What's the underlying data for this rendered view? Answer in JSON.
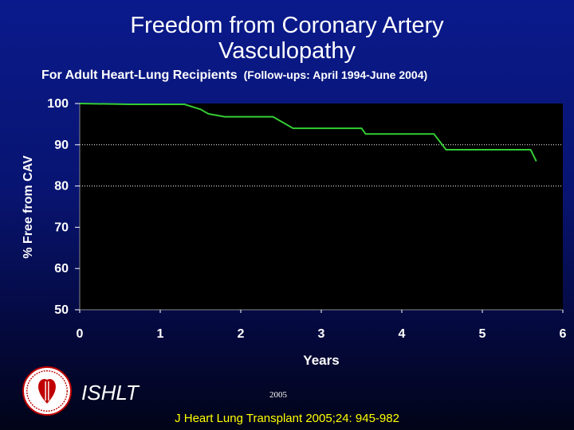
{
  "title": {
    "line1": "Freedom from Coronary Artery",
    "line2": "Vasculopathy"
  },
  "subtitle": {
    "main": "For Adult Heart-Lung Recipients",
    "followups": "(Follow-ups: April 1994-June 2004)"
  },
  "footer": {
    "org": "ISHLT",
    "year": "2005",
    "citation": "J Heart Lung Transplant 2005;24: 945-982",
    "logo_icon": "ishlt-heart-lungs-logo-icon"
  },
  "colors": {
    "background_top": "#0a1a8c",
    "plot_background": "#000000",
    "curve": "#33cc33",
    "axis_text": "#ffffff",
    "citation": "#ffff00",
    "logo_red": "#c00000"
  },
  "chart_data": {
    "type": "line",
    "title": "Freedom from Coronary Artery Vasculopathy",
    "subtitle": "For Adult Heart-Lung Recipients (Follow-ups: April 1994-June 2004)",
    "xlabel": "Years",
    "ylabel": "% Free from CAV",
    "xlim": [
      0,
      6
    ],
    "ylim": [
      50,
      100
    ],
    "x_ticks": [
      "0",
      "1",
      "2",
      "3",
      "4",
      "5",
      "6"
    ],
    "y_ticks": [
      "100",
      "90",
      "80",
      "70",
      "60",
      "50"
    ],
    "grid": "horizontal dotted at 90 and 80",
    "step": true,
    "series": [
      {
        "x": [
          0,
          0.62,
          1.3,
          1.5,
          1.6,
          1.8,
          2.4,
          2.65,
          3.5,
          3.55,
          4.4,
          4.55,
          5.6,
          5.67
        ],
        "y": [
          100,
          99.8,
          99.8,
          98.6,
          97.5,
          96.8,
          96.8,
          94,
          94,
          92.6,
          92.6,
          88.8,
          88.8,
          86
        ]
      }
    ]
  }
}
